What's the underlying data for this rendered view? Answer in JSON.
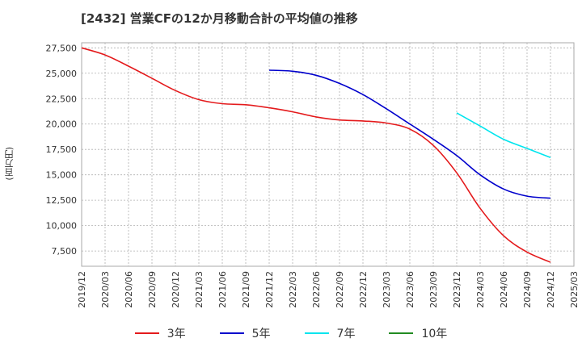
{
  "chart_data": {
    "type": "line",
    "title": "[2432]  営業CFの12か月移動合計の平均値の推移",
    "ylabel": "(百万円)",
    "xlabel": "",
    "x_ticks": [
      "2019/12",
      "2020/03",
      "2020/06",
      "2020/09",
      "2020/12",
      "2021/03",
      "2021/06",
      "2021/09",
      "2021/12",
      "2022/03",
      "2022/06",
      "2022/09",
      "2022/12",
      "2023/03",
      "2023/06",
      "2023/09",
      "2023/12",
      "2024/03",
      "2024/06",
      "2024/09",
      "2024/12",
      "2025/03"
    ],
    "y_ticks": [
      7500,
      10000,
      12500,
      15000,
      17500,
      20000,
      22500,
      25000,
      27500
    ],
    "y_tick_labels": [
      "7,500",
      "10,000",
      "12,500",
      "15,000",
      "17,500",
      "20,000",
      "22,500",
      "25,000",
      "27,500"
    ],
    "ylim": [
      6000,
      28000
    ],
    "grid": true,
    "legend_position": "bottom",
    "series": [
      {
        "name": "3年",
        "color": "#e41a1c",
        "x": [
          "2019/12",
          "2020/03",
          "2020/06",
          "2020/09",
          "2020/12",
          "2021/03",
          "2021/06",
          "2021/09",
          "2021/12",
          "2022/03",
          "2022/06",
          "2022/09",
          "2022/12",
          "2023/03",
          "2023/06",
          "2023/09",
          "2023/12",
          "2024/03",
          "2024/06",
          "2024/09",
          "2024/12"
        ],
        "values": [
          27500,
          26800,
          25700,
          24500,
          23300,
          22400,
          22000,
          21900,
          21600,
          21200,
          20700,
          20400,
          20300,
          20100,
          19500,
          17900,
          15200,
          11700,
          9000,
          7400,
          6400
        ]
      },
      {
        "name": "5年",
        "color": "#0000cc",
        "x": [
          "2021/12",
          "2022/03",
          "2022/06",
          "2022/09",
          "2022/12",
          "2023/03",
          "2023/06",
          "2023/09",
          "2023/12",
          "2024/03",
          "2024/06",
          "2024/09",
          "2024/12"
        ],
        "values": [
          25300,
          25200,
          24800,
          24000,
          22900,
          21500,
          20000,
          18500,
          16900,
          15000,
          13600,
          12900,
          12700
        ]
      },
      {
        "name": "7年",
        "color": "#00e5ee",
        "x": [
          "2023/12",
          "2024/03",
          "2024/06",
          "2024/09",
          "2024/12"
        ],
        "values": [
          21100,
          19800,
          18500,
          17600,
          16700
        ]
      },
      {
        "name": "10年",
        "color": "#228b22",
        "x": [],
        "values": []
      }
    ]
  }
}
